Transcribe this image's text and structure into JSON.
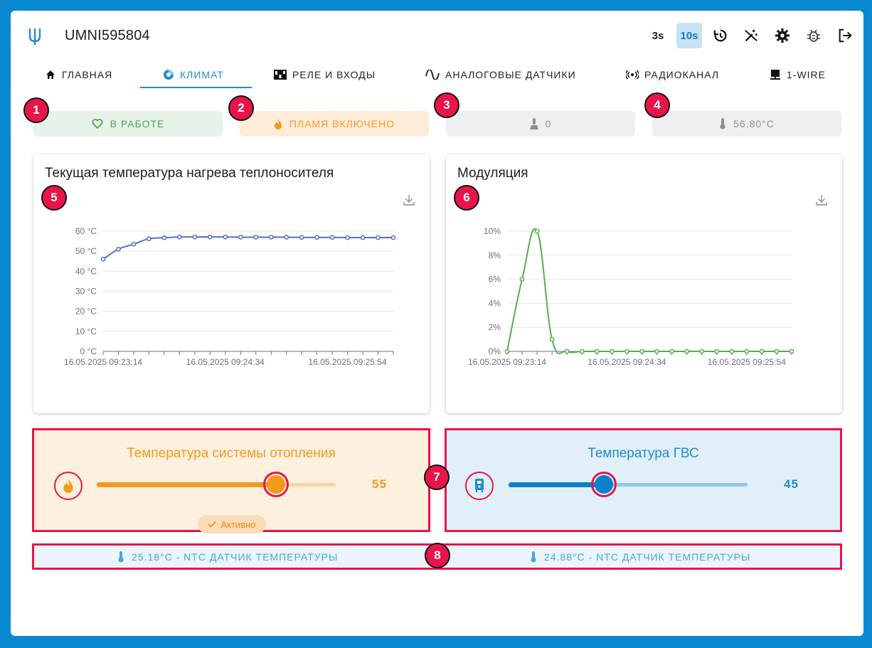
{
  "header": {
    "device_name": "UMNI595804",
    "intervals": [
      {
        "label": "3s",
        "active": false
      },
      {
        "label": "10s",
        "active": true
      }
    ],
    "icons": [
      "history-icon",
      "wand-off-icon",
      "gear-icon",
      "bug-icon",
      "logout-icon"
    ]
  },
  "tabs": [
    {
      "label": "Главная",
      "icon": "home-icon",
      "active": false
    },
    {
      "label": "Климат",
      "icon": "climate-icon",
      "active": true
    },
    {
      "label": "Реле и входы",
      "icon": "relay-icon",
      "active": false
    },
    {
      "label": "Аналоговые датчики",
      "icon": "wave-icon",
      "active": false
    },
    {
      "label": "Радиоканал",
      "icon": "radio-icon",
      "active": false
    },
    {
      "label": "1-Wire",
      "icon": "onewire-icon",
      "active": false
    }
  ],
  "status": [
    {
      "label": "В РАБОТЕ",
      "icon": "heart-icon",
      "color": "#4ca456"
    },
    {
      "label": "ПЛАМЯ ВКЛЮЧЕНО",
      "icon": "flame-icon",
      "color": "#f39a1d"
    },
    {
      "label": "0",
      "icon": "pressure-icon",
      "color": "#8a8f96"
    },
    {
      "label": "56.80°C",
      "icon": "thermometer-icon",
      "color": "#8a8f96"
    }
  ],
  "markers": [
    "1",
    "2",
    "3",
    "4",
    "5",
    "6",
    "7",
    "8"
  ],
  "chart_data": [
    {
      "type": "line",
      "title": "Текущая температура нагрева теплоносителя",
      "y_ticks": [
        "0 °C",
        "10 °C",
        "20 °C",
        "30 °C",
        "40 °C",
        "50 °C",
        "60 °C"
      ],
      "x_ticks": [
        "16.05.2025 09:23:14",
        "16.05.2025 09:24:34",
        "16.05.2025 09:25:54"
      ],
      "ylim": [
        0,
        60
      ],
      "color": "#5470c6",
      "values": [
        46,
        51,
        53.5,
        56.2,
        56.7,
        57.1,
        57.1,
        57.1,
        57.1,
        57,
        57,
        57,
        57,
        56.9,
        56.9,
        56.9,
        56.8,
        56.8,
        56.8,
        56.8
      ]
    },
    {
      "type": "line",
      "title": "Модуляция",
      "y_ticks": [
        "0%",
        "2%",
        "4%",
        "6%",
        "8%",
        "10%"
      ],
      "x_ticks": [
        "16.05.2025 09:23:14",
        "16.05.2025 09:24:34",
        "16.05.2025 09:25:54"
      ],
      "ylim": [
        0,
        10
      ],
      "color": "#5aab52",
      "values": [
        0,
        6,
        10,
        1,
        0,
        0,
        0,
        0,
        0,
        0,
        0,
        0,
        0,
        0,
        0,
        0,
        0,
        0,
        0,
        0
      ]
    }
  ],
  "heating": {
    "title": "Температура системы отопления",
    "value": "55",
    "level": 0.75,
    "active_label": "Активно",
    "color": "#f39a1d"
  },
  "dhw": {
    "title": "Температура ГВС",
    "value": "45",
    "level": 0.4,
    "color": "#1f8ccf"
  },
  "sensors": [
    {
      "label": "25.18°C - NTC датчик температуры"
    },
    {
      "label": "24.88°C - NTC датчик температуры"
    }
  ]
}
